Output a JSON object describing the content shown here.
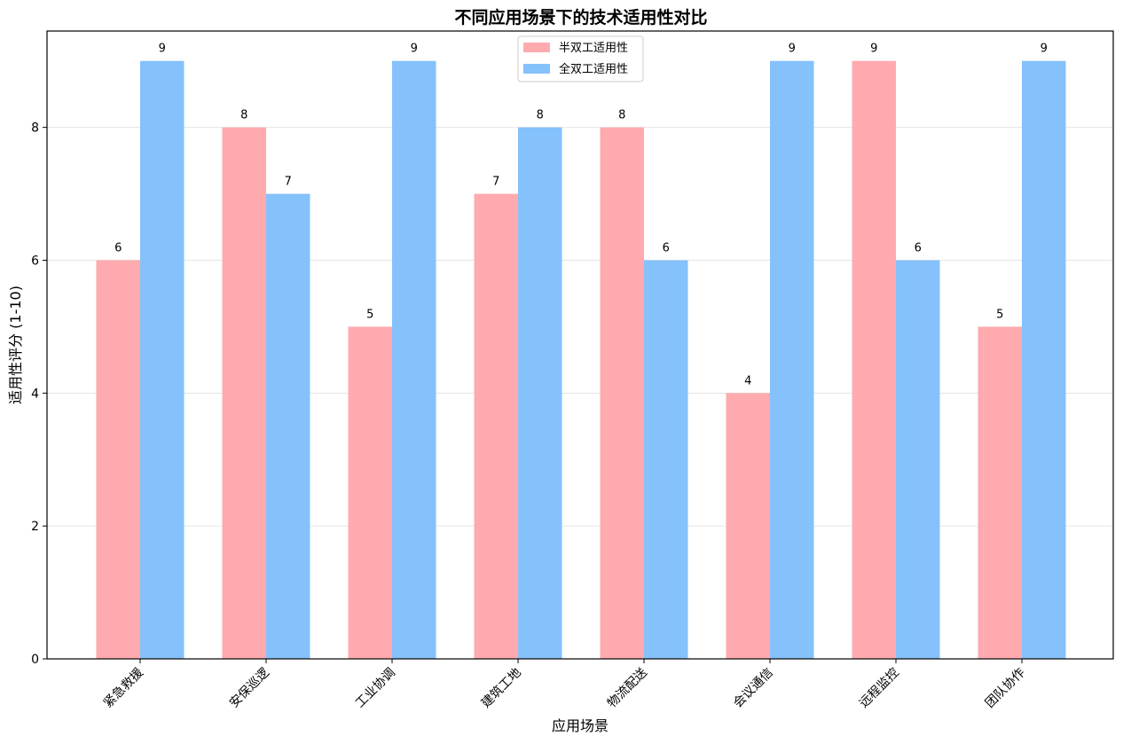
{
  "chart_data": {
    "type": "bar",
    "title": "不同应用场景下的技术适用性对比",
    "xlabel": "应用场景",
    "ylabel": "适用性评分 (1-10)",
    "ylim": [
      0,
      9.45
    ],
    "yticks": [
      "0",
      "2",
      "4",
      "6",
      "8"
    ],
    "grid": "horizontal",
    "legend_position": "top-center",
    "categories": [
      "紧急救援",
      "安保巡逻",
      "工业协调",
      "建筑工地",
      "物流配送",
      "会议通信",
      "远程监控",
      "团队协作"
    ],
    "series": [
      {
        "name": "半双工适用性",
        "color": "#ffaaae",
        "values": [
          6,
          8,
          5,
          7,
          8,
          4,
          9,
          5
        ]
      },
      {
        "name": "全双工适用性",
        "color": "#85c1fb",
        "values": [
          9,
          7,
          9,
          8,
          6,
          9,
          6,
          9
        ]
      }
    ]
  }
}
